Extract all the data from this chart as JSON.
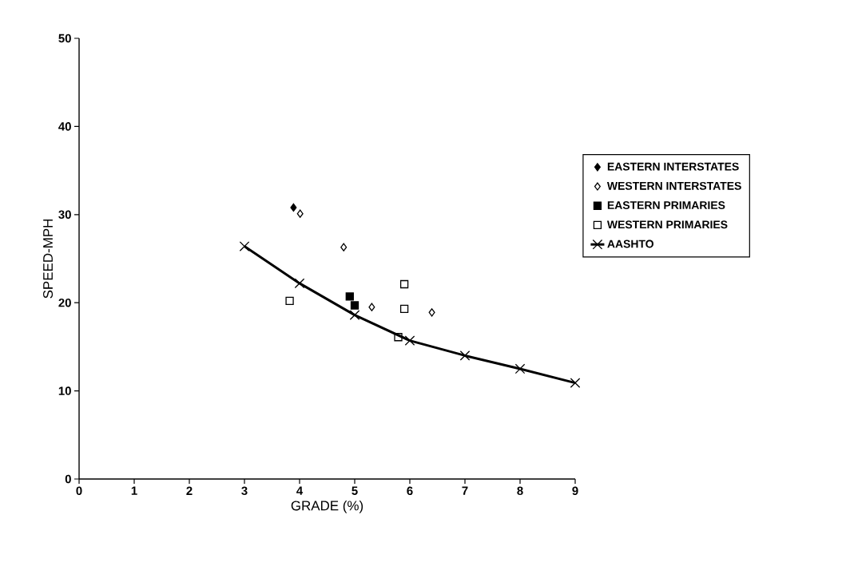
{
  "chart_data": {
    "type": "scatter",
    "xlabel": "GRADE (%)",
    "ylabel": "SPEED-MPH",
    "xlim": [
      0,
      9
    ],
    "ylim": [
      0,
      50
    ],
    "xticks": [
      0,
      1,
      2,
      3,
      4,
      5,
      6,
      7,
      8,
      9
    ],
    "yticks": [
      0,
      10,
      20,
      30,
      40,
      50
    ],
    "legend": "right",
    "grid": false,
    "series": [
      {
        "name": "EASTERN INTERSTATES",
        "color": "#000000",
        "marker": "diamond",
        "x": [
          3.89
        ],
        "values": [
          30.8
        ]
      },
      {
        "name": "WESTERN INTERSTATES",
        "color": "#000000",
        "marker": "diamond",
        "x": [
          4.01,
          4.8,
          5.31,
          6.4
        ],
        "values": [
          30.1,
          26.3,
          19.5,
          18.9
        ]
      },
      {
        "name": "EASTERN PRIMARIES",
        "color": "#000000",
        "marker": "square",
        "x": [
          4.91,
          5.0
        ],
        "values": [
          20.7,
          19.7
        ]
      },
      {
        "name": "WESTERN PRIMARIES",
        "color": "#000000",
        "marker": "square",
        "x": [
          3.82,
          5.9,
          5.9,
          5.79
        ],
        "values": [
          20.2,
          22.1,
          19.3,
          16.1
        ]
      },
      {
        "name": "AASHTO",
        "type": "line",
        "color": "#000000",
        "marker": "cross",
        "line_style": "solid",
        "x": [
          3,
          4,
          5,
          6,
          7,
          8,
          9
        ],
        "values": [
          26.4,
          22.2,
          18.6,
          15.7,
          14.0,
          12.5,
          10.9
        ]
      }
    ]
  }
}
